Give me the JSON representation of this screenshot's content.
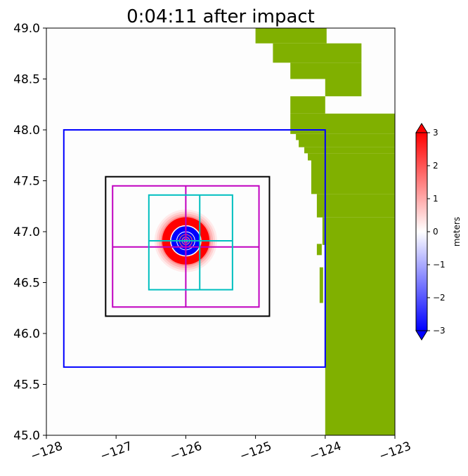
{
  "chart_data": {
    "type": "heatmap",
    "title": "0:04:11 after impact",
    "xlim": [
      -128,
      -123
    ],
    "ylim": [
      45.0,
      49.0
    ],
    "x_ticks": [
      -128,
      -127,
      -126,
      -125,
      -124,
      -123
    ],
    "x_tick_labels": [
      "−128",
      "−127",
      "−126",
      "−125",
      "−124",
      "−123"
    ],
    "y_ticks": [
      45.0,
      45.5,
      46.0,
      46.5,
      47.0,
      47.5,
      48.0,
      48.5,
      49.0
    ],
    "y_tick_labels": [
      "45.0",
      "45.5",
      "46.0",
      "46.5",
      "47.0",
      "47.5",
      "48.0",
      "48.5",
      "49.0"
    ],
    "grid": false,
    "colormap": "bwr",
    "colorbar": {
      "label": "meters",
      "range": [
        -3,
        3
      ],
      "ticks": [
        3,
        2,
        1,
        0,
        -1,
        -2,
        -3
      ],
      "tick_labels": [
        "3",
        "2",
        "1",
        "0",
        "−1",
        "−2",
        "−3"
      ],
      "extend": "both"
    },
    "land_color": "#80b000",
    "land_cells": [
      [
        -125.0,
        -123.98,
        48.85,
        49.0
      ],
      [
        -124.75,
        -123.48,
        48.66,
        48.85
      ],
      [
        -124.5,
        -123.48,
        48.5,
        48.66
      ],
      [
        -124.0,
        -123.48,
        48.33,
        48.5
      ],
      [
        -124.5,
        -124.0,
        48.16,
        48.33
      ],
      [
        -124.5,
        -123.0,
        47.96,
        48.16
      ],
      [
        -124.42,
        -123.0,
        47.9,
        47.96
      ],
      [
        -124.38,
        -123.0,
        47.83,
        47.9
      ],
      [
        -124.3,
        -123.0,
        47.77,
        47.83
      ],
      [
        -124.25,
        -123.0,
        47.7,
        47.77
      ],
      [
        -124.2,
        -123.0,
        47.37,
        47.7
      ],
      [
        -124.12,
        -123.0,
        47.14,
        47.37
      ],
      [
        -124.0,
        -123.0,
        45.0,
        47.14
      ],
      [
        -124.12,
        -124.05,
        46.77,
        46.88
      ],
      [
        -124.04,
        -124.0,
        46.87,
        47.14
      ],
      [
        -124.08,
        -124.03,
        46.3,
        46.65
      ]
    ],
    "wave": {
      "center": [
        -126.0,
        46.91
      ],
      "bands": [
        {
          "r_deg": 0.45,
          "color": "#ffeaea"
        },
        {
          "r_deg": 0.42,
          "color": "#ffd2d2"
        },
        {
          "r_deg": 0.39,
          "color": "#ffb4b4"
        },
        {
          "r_deg": 0.36,
          "color": "#ff8c8c"
        },
        {
          "r_deg": 0.34,
          "color": "#ff0000"
        },
        {
          "r_deg": 0.225,
          "color": "#ffffff"
        },
        {
          "r_deg": 0.21,
          "color": "#0000ff"
        },
        {
          "r_deg": 0.135,
          "color": "#ffffff"
        },
        {
          "r_deg": 0.125,
          "color": "#0000ff"
        },
        {
          "r_deg": 0.095,
          "color": "#ff6060"
        },
        {
          "r_deg": 0.085,
          "color": "#0000ff"
        },
        {
          "r_deg": 0.06,
          "color": "#ff7070"
        },
        {
          "r_deg": 0.05,
          "color": "#1a1aff"
        },
        {
          "r_deg": 0.03,
          "color": "#ff8080"
        },
        {
          "r_deg": 0.018,
          "color": "#3333ff"
        }
      ]
    },
    "regions": [
      {
        "name": "level-1-domain",
        "color": "#0000ff",
        "x": [
          -127.75,
          -124.0
        ],
        "y": [
          45.67,
          48.0
        ]
      },
      {
        "name": "level-2-domain",
        "color": "#000000",
        "x": [
          -127.15,
          -124.8
        ],
        "y": [
          46.17,
          47.54
        ]
      },
      {
        "name": "level-3-domain",
        "color": "#c000c0",
        "x": [
          -127.05,
          -124.95
        ],
        "y": [
          46.26,
          47.45
        ],
        "split": [
          -126.0,
          46.85
        ]
      },
      {
        "name": "level-4-domain",
        "color": "#00bfc0",
        "x": [
          -126.53,
          -125.33
        ],
        "y": [
          46.43,
          47.36
        ],
        "split": [
          -125.8,
          46.91
        ]
      }
    ]
  }
}
